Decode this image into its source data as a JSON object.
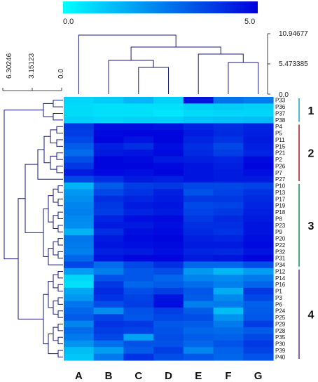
{
  "chart_data": {
    "type": "heatmap",
    "colorbar": {
      "min_label": "0.0",
      "max_label": "5.0",
      "min_value": 0,
      "max_value": 5,
      "colors": [
        "#00ffff",
        "#0000dd"
      ]
    },
    "columns": [
      "A",
      "B",
      "C",
      "D",
      "E",
      "F",
      "G"
    ],
    "rows": [
      "P33",
      "P36",
      "P37",
      "P38",
      "P4",
      "P5",
      "P11",
      "P15",
      "P21",
      "P2",
      "P26",
      "P7",
      "P27",
      "P10",
      "P13",
      "P17",
      "P19",
      "P18",
      "P8",
      "P23",
      "P9",
      "P20",
      "P22",
      "P32",
      "P31",
      "P34",
      "P12",
      "P14",
      "P16",
      "P1",
      "P3",
      "P6",
      "P24",
      "P25",
      "P29",
      "P28",
      "P35",
      "P30",
      "P39",
      "P40"
    ],
    "values": [
      [
        0.8,
        1.0,
        1.4,
        0.9,
        4.6,
        2.8,
        2.6
      ],
      [
        0.7,
        0.6,
        0.6,
        0.6,
        0.9,
        1.0,
        0.9
      ],
      [
        0.7,
        0.6,
        0.6,
        0.5,
        0.7,
        0.8,
        0.8
      ],
      [
        0.9,
        0.8,
        0.9,
        0.9,
        1.1,
        1.2,
        1.3
      ],
      [
        3.9,
        4.7,
        4.7,
        4.6,
        4.3,
        4.1,
        4.3
      ],
      [
        3.8,
        4.8,
        4.9,
        4.9,
        4.5,
        4.2,
        4.4
      ],
      [
        3.6,
        4.9,
        4.6,
        4.9,
        4.3,
        4.0,
        4.5
      ],
      [
        3.2,
        4.4,
        4.1,
        4.7,
        4.1,
        3.6,
        4.4
      ],
      [
        2.9,
        4.5,
        4.6,
        4.8,
        4.2,
        3.8,
        4.3
      ],
      [
        3.5,
        4.9,
        4.8,
        4.5,
        4.4,
        4.3,
        4.8
      ],
      [
        3.9,
        4.9,
        4.9,
        4.8,
        4.6,
        4.4,
        4.9
      ],
      [
        4.5,
        4.8,
        4.7,
        4.9,
        4.6,
        4.5,
        4.7
      ],
      [
        3.6,
        4.1,
        4.5,
        4.4,
        4.6,
        4.5,
        4.5
      ],
      [
        1.5,
        3.2,
        3.8,
        3.9,
        3.6,
        3.6,
        3.7
      ],
      [
        2.0,
        3.6,
        4.0,
        4.4,
        3.4,
        3.7,
        4.0
      ],
      [
        2.2,
        4.1,
        4.3,
        4.5,
        3.9,
        3.9,
        4.2
      ],
      [
        2.4,
        3.9,
        4.5,
        4.6,
        3.6,
        3.7,
        4.3
      ],
      [
        2.5,
        3.8,
        4.3,
        4.5,
        3.7,
        3.9,
        4.4
      ],
      [
        2.3,
        4.3,
        4.7,
        4.8,
        3.9,
        4.2,
        4.5
      ],
      [
        2.2,
        4.5,
        4.5,
        4.7,
        4.1,
        4.1,
        4.6
      ],
      [
        1.5,
        4.1,
        4.7,
        4.8,
        4.2,
        4.0,
        4.6
      ],
      [
        2.7,
        4.5,
        4.8,
        4.9,
        4.4,
        4.3,
        4.7
      ],
      [
        2.6,
        4.6,
        4.7,
        4.8,
        4.5,
        4.5,
        4.8
      ],
      [
        2.5,
        4.4,
        4.5,
        4.7,
        4.3,
        4.2,
        4.6
      ],
      [
        3.0,
        4.6,
        4.9,
        4.9,
        4.5,
        4.6,
        4.9
      ],
      [
        3.6,
        2.9,
        3.6,
        4.1,
        3.0,
        3.0,
        3.5
      ],
      [
        1.9,
        2.5,
        3.3,
        3.5,
        2.0,
        1.4,
        1.9
      ],
      [
        0.8,
        3.4,
        3.3,
        3.0,
        2.4,
        2.3,
        2.6
      ],
      [
        0.6,
        3.9,
        3.0,
        3.2,
        2.9,
        2.5,
        3.0
      ],
      [
        1.7,
        4.2,
        3.5,
        3.8,
        3.3,
        1.6,
        3.9
      ],
      [
        2.0,
        4.0,
        3.7,
        4.6,
        3.2,
        2.3,
        3.6
      ],
      [
        2.7,
        3.5,
        3.8,
        4.7,
        2.5,
        2.6,
        3.1
      ],
      [
        3.0,
        2.2,
        3.4,
        3.8,
        3.2,
        1.3,
        3.2
      ],
      [
        3.2,
        3.7,
        3.3,
        3.6,
        3.5,
        2.1,
        3.3
      ],
      [
        2.4,
        4.0,
        3.9,
        3.3,
        3.2,
        2.6,
        3.8
      ],
      [
        2.9,
        3.8,
        3.7,
        3.4,
        3.0,
        2.9,
        3.2
      ],
      [
        2.6,
        3.6,
        1.8,
        3.5,
        3.2,
        3.1,
        3.6
      ],
      [
        2.1,
        2.8,
        3.4,
        3.4,
        3.0,
        3.4,
        3.9
      ],
      [
        1.3,
        1.9,
        3.2,
        3.8,
        2.4,
        3.1,
        3.7
      ],
      [
        1.1,
        2.6,
        4.0,
        3.5,
        3.3,
        3.0,
        3.4
      ]
    ],
    "column_dendrogram_ticks": [
      "10.94677",
      "5.473385",
      "0.0"
    ],
    "row_dendrogram_ticks": [
      "6.30246",
      "3.15123",
      "0.0"
    ],
    "clusters": [
      {
        "label": "1",
        "first_row": 0,
        "last_row": 3,
        "color": "#26a6c8"
      },
      {
        "label": "2",
        "first_row": 4,
        "last_row": 12,
        "color": "#b02028"
      },
      {
        "label": "3",
        "first_row": 13,
        "last_row": 25,
        "color": "#1a9460"
      },
      {
        "label": "4",
        "first_row": 26,
        "last_row": 39,
        "color": "#6a3d8c"
      }
    ],
    "dendrogram_color": "#1a1a7a"
  }
}
